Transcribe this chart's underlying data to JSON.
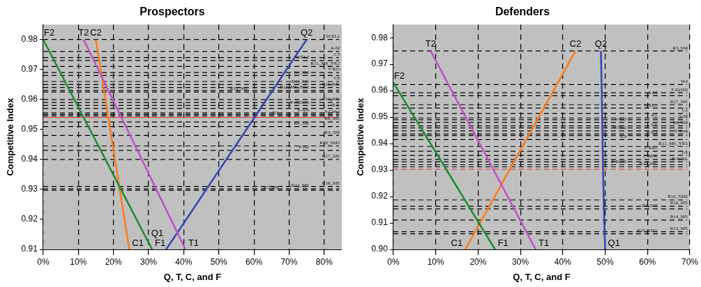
{
  "chart_data": [
    {
      "type": "line",
      "title": "Prospectors",
      "xlabel": "Q, T, C, and F",
      "ylabel": "Competitive Index",
      "xlim": [
        0,
        85
      ],
      "xticks": [
        {
          "value": 0,
          "label": "0%"
        },
        {
          "value": 10,
          "label": "10%"
        },
        {
          "value": 20,
          "label": "20%"
        },
        {
          "value": 30,
          "label": "30%"
        },
        {
          "value": 40,
          "label": "40%"
        },
        {
          "value": 50,
          "label": "50%"
        },
        {
          "value": 60,
          "label": "60%"
        },
        {
          "value": 70,
          "label": "70%"
        },
        {
          "value": 80,
          "label": "80%"
        }
      ],
      "ylim": [
        0.91,
        0.985
      ],
      "yticks": [
        0.91,
        0.92,
        0.93,
        0.94,
        0.95,
        0.96,
        0.97,
        0.98
      ],
      "grid": "x",
      "marker": "none",
      "series": [
        {
          "color": "#1e8a2e",
          "x": [
            0,
            31
          ],
          "values": [
            0.98,
            0.91
          ]
        },
        {
          "color": "#c050c8",
          "x": [
            11.5,
            40.5
          ],
          "values": [
            0.98,
            0.91
          ]
        },
        {
          "color": "#ff7a1a",
          "x": [
            15,
            24.5
          ],
          "values": [
            0.98,
            0.91
          ]
        },
        {
          "color": "#3545b5",
          "x": [
            35,
            75
          ],
          "values": [
            0.91,
            0.98
          ]
        }
      ],
      "annotations": [
        {
          "text": "F2",
          "x": 0,
          "y": 0.98
        },
        {
          "text": "T2",
          "x": 11.5,
          "y": 0.98
        },
        {
          "text": "C2",
          "x": 15,
          "y": 0.98
        },
        {
          "text": "Q2",
          "x": 75,
          "y": 0.98
        },
        {
          "text": "C1",
          "x": 24.5,
          "y": 0.91
        },
        {
          "text": "F1",
          "x": 31,
          "y": 0.91
        },
        {
          "text": "Q1",
          "x": 35,
          "y": 0.91
        },
        {
          "text": "T1",
          "x": 40.5,
          "y": 0.91
        }
      ],
      "ref_lines": [
        {
          "axis": "y",
          "value": 0.98,
          "label": "WXL1",
          "line_style": "dashed"
        },
        {
          "axis": "y",
          "value": 0.976,
          "label": "A-M",
          "line_style": "dashed"
        },
        {
          "axis": "y",
          "value": 0.974,
          "label": "C3",
          "line_style": "dashed"
        },
        {
          "axis": "y",
          "value": 0.973,
          "label": "WXL2",
          "line_style": "dashed"
        },
        {
          "axis": "y",
          "value": 0.971,
          "label": "R11_MS_YR2",
          "line_style": "dashed"
        },
        {
          "axis": "y",
          "value": 0.969,
          "label": "V-KO",
          "line_style": "dashed"
        },
        {
          "axis": "y",
          "value": 0.968,
          "label": "R4_SM",
          "line_style": "dashed"
        },
        {
          "axis": "y",
          "value": 0.966,
          "label": "C6",
          "line_style": "dashed"
        },
        {
          "axis": "y",
          "value": 0.965,
          "label": "R13_MS",
          "line_style": "dashed"
        },
        {
          "axis": "y",
          "value": 0.964,
          "label": "R16_MS",
          "line_style": "dashed"
        },
        {
          "axis": "y",
          "value": 0.963,
          "label": "R12_MS_YR1",
          "line_style": "dashed"
        },
        {
          "axis": "y",
          "value": 0.9625,
          "label": "R15_MS",
          "line_style": "dashed"
        },
        {
          "axis": "y",
          "value": 0.96,
          "line_style": "dashed"
        },
        {
          "axis": "y",
          "value": 0.959,
          "label": "R14_MS",
          "line_style": "dashed"
        },
        {
          "axis": "y",
          "value": 0.958,
          "label": "F-JIDUN",
          "line_style": "dashed"
        },
        {
          "axis": "y",
          "value": 0.957,
          "label": "T-C",
          "line_style": "dashed"
        },
        {
          "axis": "y",
          "value": 0.9555,
          "label": "F-AN",
          "line_style": "dashed"
        },
        {
          "axis": "y",
          "value": 0.955,
          "label": "S-Cimo",
          "line_style": "dashed"
        },
        {
          "axis": "y",
          "value": 0.9545,
          "label": "R1",
          "line_style": "dashed"
        },
        {
          "axis": "y",
          "value": 0.954,
          "color": "#e03030",
          "line_style": "solid"
        },
        {
          "axis": "y",
          "value": 0.9525,
          "label": "R6_MS",
          "line_style": "dashed"
        },
        {
          "axis": "y",
          "value": 0.951,
          "label": "R8_SM",
          "line_style": "dashed"
        },
        {
          "axis": "y",
          "value": 0.948,
          "label": "R3_SM",
          "line_style": "dashed"
        },
        {
          "axis": "y",
          "value": 0.9445,
          "label": "R10_SM2",
          "line_style": "dashed"
        },
        {
          "axis": "y",
          "value": 0.943,
          "label": "F-N2",
          "line_style": "dashed"
        },
        {
          "axis": "y",
          "value": 0.94,
          "label": "R17_MS",
          "line_style": "dashed"
        },
        {
          "axis": "y",
          "value": 0.931,
          "label": "R18_MS",
          "line_style": "dashed"
        },
        {
          "axis": "y",
          "value": 0.9302,
          "label": "R12_MS",
          "line_style": "dashed"
        },
        {
          "axis": "y",
          "value": 0.9297,
          "label": "R5_MS",
          "line_style": "dashed"
        }
      ]
    },
    {
      "type": "line",
      "title": "Defenders",
      "xlabel": "Q, T, C, and F",
      "ylabel": "Competitive Index",
      "xlim": [
        0,
        70
      ],
      "xticks": [
        {
          "value": 0,
          "label": "0%"
        },
        {
          "value": 10,
          "label": "10%"
        },
        {
          "value": 20,
          "label": "20%"
        },
        {
          "value": 30,
          "label": "30%"
        },
        {
          "value": 40,
          "label": "40%"
        },
        {
          "value": 50,
          "label": "50%"
        },
        {
          "value": 60,
          "label": "60%"
        },
        {
          "value": 70,
          "label": "70%"
        }
      ],
      "ylim": [
        0.9,
        0.985
      ],
      "yticks": [
        {
          "value": 0.9,
          "label": "0.90"
        },
        0.91,
        0.92,
        0.93,
        0.94,
        0.95,
        0.96,
        0.97,
        0.98
      ],
      "grid": "x",
      "marker": "none",
      "series": [
        {
          "color": "#1e8a2e",
          "x": [
            0,
            24
          ],
          "values": [
            0.963,
            0.9
          ]
        },
        {
          "color": "#c050c8",
          "x": [
            8.8,
            33.6
          ],
          "values": [
            0.975,
            0.9
          ]
        },
        {
          "color": "#ff7a1a",
          "x": [
            17,
            43
          ],
          "values": [
            0.9,
            0.975
          ]
        },
        {
          "color": "#3545b5",
          "x": [
            49,
            49.2,
            49.5,
            49.8,
            50
          ],
          "values": [
            0.975,
            0.96,
            0.93,
            0.91,
            0.9
          ]
        }
      ],
      "annotations": [
        {
          "text": "F2",
          "x": 0,
          "y": 0.963
        },
        {
          "text": "T2",
          "x": 8.8,
          "y": 0.975
        },
        {
          "text": "C2",
          "x": 43,
          "y": 0.975
        },
        {
          "text": "Q2",
          "x": 49,
          "y": 0.975
        },
        {
          "text": "C1",
          "x": 17,
          "y": 0.9
        },
        {
          "text": "F1",
          "x": 24,
          "y": 0.9
        },
        {
          "text": "T1",
          "x": 33.6,
          "y": 0.9
        },
        {
          "text": "Q1",
          "x": 50,
          "y": 0.9
        }
      ],
      "ref_lines": [
        {
          "axis": "y",
          "value": 0.975,
          "label": "R3_SM",
          "line_style": "dashed"
        },
        {
          "axis": "y",
          "value": 0.9623,
          "label": "W4",
          "line_style": "dashed"
        },
        {
          "axis": "y",
          "value": 0.9592,
          "label": "F-KONI",
          "line_style": "dashed"
        },
        {
          "axis": "y",
          "value": 0.9581,
          "label": "A-M",
          "line_style": "dashed"
        },
        {
          "axis": "y",
          "value": 0.9547,
          "label": "R17_MS",
          "line_style": "dashed"
        },
        {
          "axis": "y",
          "value": 0.9534,
          "label": "WXL1",
          "line_style": "dashed"
        },
        {
          "axis": "y",
          "value": 0.9514,
          "label": "C2",
          "line_style": "dashed"
        },
        {
          "axis": "y",
          "value": 0.9497,
          "label": "R1",
          "line_style": "dashed"
        },
        {
          "axis": "y",
          "value": 0.949,
          "label": "S-M",
          "line_style": "dashed"
        },
        {
          "axis": "y",
          "value": 0.948,
          "label": "V-KO",
          "line_style": "dashed"
        },
        {
          "axis": "y",
          "value": 0.9467,
          "label": "R8_SM",
          "line_style": "dashed"
        },
        {
          "axis": "y",
          "value": 0.9459,
          "label": "C8",
          "line_style": "dashed"
        },
        {
          "axis": "y",
          "value": 0.9448,
          "label": "WXL2",
          "line_style": "dashed"
        },
        {
          "axis": "y",
          "value": 0.9436,
          "label": "S-Tren",
          "line_style": "dashed"
        },
        {
          "axis": "y",
          "value": 0.943,
          "label": "T-TO",
          "line_style": "dashed"
        },
        {
          "axis": "y",
          "value": 0.9415,
          "label": "C3",
          "line_style": "dashed"
        },
        {
          "axis": "y",
          "value": 0.9389,
          "label": "R11_MS_YR1",
          "line_style": "dashed"
        },
        {
          "axis": "y",
          "value": 0.9371,
          "label": "F-Kuo",
          "line_style": "dashed"
        },
        {
          "axis": "y",
          "value": 0.9355,
          "label": "T-S",
          "line_style": "dashed"
        },
        {
          "axis": "y",
          "value": 0.934,
          "label": "F-AVA",
          "line_style": "dashed"
        },
        {
          "axis": "y",
          "value": 0.9331,
          "label": "B-WXL",
          "line_style": "dashed"
        },
        {
          "axis": "y",
          "value": 0.932,
          "label": "F-KON",
          "line_style": "dashed"
        },
        {
          "axis": "y",
          "value": 0.9312,
          "label": "R15_MS",
          "line_style": "dashed"
        },
        {
          "axis": "y",
          "value": 0.9303,
          "color": "#e03030",
          "line_style": "dashed"
        },
        {
          "axis": "y",
          "value": 0.9187,
          "label": "R10_SM2",
          "line_style": "dashed"
        },
        {
          "axis": "y",
          "value": 0.9163,
          "label": "R16_MS",
          "line_style": "dashed"
        },
        {
          "axis": "y",
          "value": 0.9153,
          "label": "R4_SM",
          "line_style": "dashed"
        },
        {
          "axis": "y",
          "value": 0.9111,
          "label": "R14_MS",
          "line_style": "dashed"
        },
        {
          "axis": "y",
          "value": 0.9067,
          "label": "R13_MS",
          "line_style": "dashed"
        },
        {
          "axis": "y",
          "value": 0.9059,
          "label": "R10_SM1",
          "line_style": "dashed"
        }
      ]
    }
  ]
}
